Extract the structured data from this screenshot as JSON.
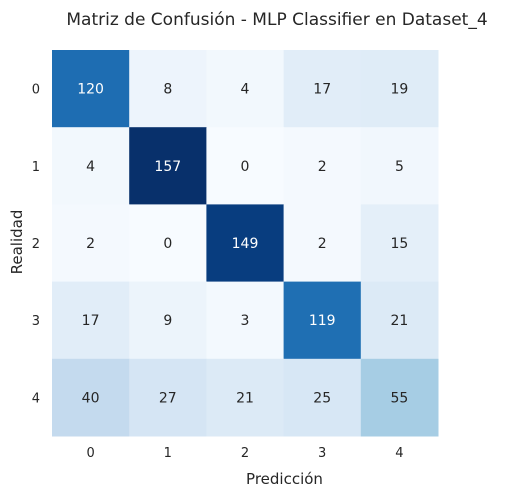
{
  "chart_data": {
    "type": "heatmap",
    "title": "Matriz de Confusión - MLP Classifier en Dataset_4",
    "xlabel": "Predicción",
    "ylabel": "Realidad",
    "x_categories": [
      "0",
      "1",
      "2",
      "3",
      "4"
    ],
    "y_categories": [
      "0",
      "1",
      "2",
      "3",
      "4"
    ],
    "values": [
      [
        120,
        8,
        4,
        17,
        19
      ],
      [
        4,
        157,
        0,
        2,
        5
      ],
      [
        2,
        0,
        149,
        2,
        15
      ],
      [
        17,
        9,
        3,
        119,
        21
      ],
      [
        40,
        27,
        21,
        25,
        55
      ]
    ],
    "colormap": "Blues",
    "vmin": 0,
    "vmax": 157,
    "colorbar": false,
    "grid": false,
    "annotations": true
  }
}
